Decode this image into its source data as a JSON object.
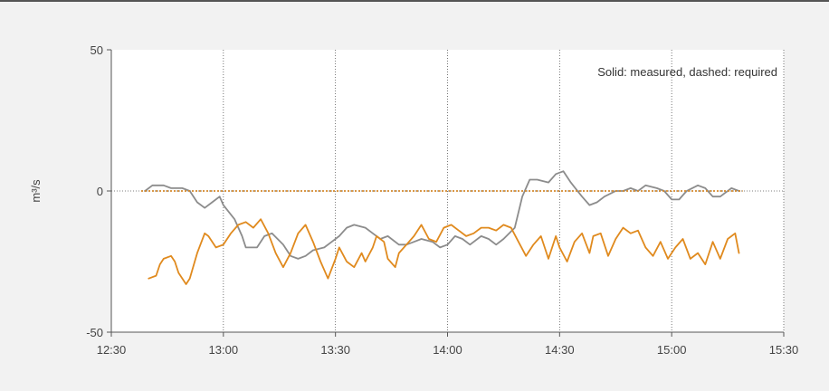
{
  "chart_data": {
    "type": "line",
    "ylabel": "m³/s",
    "annotation": "Solid: measured, dashed: required",
    "ylim": [
      -50,
      50
    ],
    "yticks": [
      {
        "value": 50,
        "label": "50"
      },
      {
        "value": 0,
        "label": "0"
      },
      {
        "value": -50,
        "label": "-50"
      }
    ],
    "xlim": [
      "12:30",
      "15:30"
    ],
    "xticks": [
      "12:30",
      "13:00",
      "13:30",
      "14:00",
      "14:30",
      "15:00",
      "15:30"
    ],
    "grid": "vertical dotted at ticks, horizontal dotted at 0",
    "series": [
      {
        "color": "#8c8c8c",
        "style": "solid",
        "points": [
          [
            "12:39",
            0
          ],
          [
            "12:41",
            2
          ],
          [
            "12:44",
            2
          ],
          [
            "12:46",
            1
          ],
          [
            "12:49",
            1
          ],
          [
            "12:51",
            0
          ],
          [
            "12:53",
            -4
          ],
          [
            "12:55",
            -6
          ],
          [
            "12:57",
            -4
          ],
          [
            "12:59",
            -2
          ],
          [
            "13:00",
            -5
          ],
          [
            "13:03",
            -10
          ],
          [
            "13:05",
            -16
          ],
          [
            "13:06",
            -20
          ],
          [
            "13:09",
            -20
          ],
          [
            "13:11",
            -16
          ],
          [
            "13:13",
            -15
          ],
          [
            "13:16",
            -19
          ],
          [
            "13:18",
            -23
          ],
          [
            "13:20",
            -24
          ],
          [
            "13:22",
            -23
          ],
          [
            "13:24",
            -21
          ],
          [
            "13:27",
            -20
          ],
          [
            "13:29",
            -18
          ],
          [
            "13:31",
            -16
          ],
          [
            "13:33",
            -13
          ],
          [
            "13:35",
            -12
          ],
          [
            "13:38",
            -13
          ],
          [
            "13:40",
            -15
          ],
          [
            "13:42",
            -17
          ],
          [
            "13:44",
            -16
          ],
          [
            "13:47",
            -19
          ],
          [
            "13:49",
            -19
          ],
          [
            "13:51",
            -18
          ],
          [
            "13:53",
            -17
          ],
          [
            "13:56",
            -18
          ],
          [
            "13:58",
            -20
          ],
          [
            "14:00",
            -19
          ],
          [
            "14:02",
            -16
          ],
          [
            "14:04",
            -17
          ],
          [
            "14:06",
            -19
          ],
          [
            "14:09",
            -16
          ],
          [
            "14:11",
            -17
          ],
          [
            "14:13",
            -19
          ],
          [
            "14:15",
            -17
          ],
          [
            "14:18",
            -13
          ],
          [
            "14:20",
            -2
          ],
          [
            "14:22",
            4
          ],
          [
            "14:24",
            4
          ],
          [
            "14:27",
            3
          ],
          [
            "14:29",
            6
          ],
          [
            "14:31",
            7
          ],
          [
            "14:33",
            3
          ],
          [
            "14:36",
            -2
          ],
          [
            "14:38",
            -5
          ],
          [
            "14:40",
            -4
          ],
          [
            "14:42",
            -2
          ],
          [
            "14:45",
            0
          ],
          [
            "14:47",
            0
          ],
          [
            "14:49",
            1
          ],
          [
            "14:51",
            0
          ],
          [
            "14:53",
            2
          ],
          [
            "14:56",
            1
          ],
          [
            "14:58",
            0
          ],
          [
            "15:00",
            -3
          ],
          [
            "15:02",
            -3
          ],
          [
            "15:04",
            0
          ],
          [
            "15:07",
            2
          ],
          [
            "15:09",
            1
          ],
          [
            "15:11",
            -2
          ],
          [
            "15:13",
            -2
          ],
          [
            "15:16",
            1
          ],
          [
            "15:18",
            0
          ]
        ]
      },
      {
        "color": "#e08a1e",
        "style": "solid",
        "points": [
          [
            "12:40",
            -31
          ],
          [
            "12:42",
            -30
          ],
          [
            "12:43",
            -26
          ],
          [
            "12:44",
            -24
          ],
          [
            "12:46",
            -23
          ],
          [
            "12:47",
            -25
          ],
          [
            "12:48",
            -29
          ],
          [
            "12:50",
            -33
          ],
          [
            "12:51",
            -31
          ],
          [
            "12:53",
            -22
          ],
          [
            "12:55",
            -15
          ],
          [
            "12:56",
            -16
          ],
          [
            "12:58",
            -20
          ],
          [
            "13:00",
            -19
          ],
          [
            "13:02",
            -15
          ],
          [
            "13:04",
            -12
          ],
          [
            "13:06",
            -11
          ],
          [
            "13:08",
            -13
          ],
          [
            "13:10",
            -10
          ],
          [
            "13:12",
            -15
          ],
          [
            "13:14",
            -22
          ],
          [
            "13:16",
            -27
          ],
          [
            "13:18",
            -22
          ],
          [
            "13:20",
            -15
          ],
          [
            "13:22",
            -12
          ],
          [
            "13:24",
            -18
          ],
          [
            "13:26",
            -25
          ],
          [
            "13:28",
            -31
          ],
          [
            "13:30",
            -24
          ],
          [
            "13:31",
            -20
          ],
          [
            "13:33",
            -25
          ],
          [
            "13:35",
            -27
          ],
          [
            "13:37",
            -22
          ],
          [
            "13:38",
            -25
          ],
          [
            "13:40",
            -20
          ],
          [
            "13:41",
            -16
          ],
          [
            "13:43",
            -18
          ],
          [
            "13:44",
            -24
          ],
          [
            "13:46",
            -27
          ],
          [
            "13:47",
            -22
          ],
          [
            "13:49",
            -19
          ],
          [
            "13:51",
            -16
          ],
          [
            "13:53",
            -12
          ],
          [
            "13:55",
            -17
          ],
          [
            "13:57",
            -18
          ],
          [
            "13:59",
            -13
          ],
          [
            "14:01",
            -12
          ],
          [
            "14:03",
            -14
          ],
          [
            "14:05",
            -16
          ],
          [
            "14:07",
            -15
          ],
          [
            "14:09",
            -13
          ],
          [
            "14:11",
            -13
          ],
          [
            "14:13",
            -14
          ],
          [
            "14:15",
            -12
          ],
          [
            "14:17",
            -13
          ],
          [
            "14:19",
            -18
          ],
          [
            "14:21",
            -23
          ],
          [
            "14:23",
            -19
          ],
          [
            "14:25",
            -16
          ],
          [
            "14:27",
            -24
          ],
          [
            "14:29",
            -16
          ],
          [
            "14:30",
            -20
          ],
          [
            "14:32",
            -25
          ],
          [
            "14:34",
            -18
          ],
          [
            "14:36",
            -15
          ],
          [
            "14:38",
            -22
          ],
          [
            "14:39",
            -16
          ],
          [
            "14:41",
            -15
          ],
          [
            "14:43",
            -23
          ],
          [
            "14:45",
            -17
          ],
          [
            "14:47",
            -13
          ],
          [
            "14:49",
            -15
          ],
          [
            "14:51",
            -14
          ],
          [
            "14:53",
            -20
          ],
          [
            "14:55",
            -23
          ],
          [
            "14:57",
            -18
          ],
          [
            "14:59",
            -24
          ],
          [
            "15:01",
            -20
          ],
          [
            "15:03",
            -17
          ],
          [
            "15:05",
            -24
          ],
          [
            "15:07",
            -22
          ],
          [
            "15:09",
            -26
          ],
          [
            "15:11",
            -18
          ],
          [
            "15:13",
            -24
          ],
          [
            "15:15",
            -17
          ],
          [
            "15:17",
            -15
          ],
          [
            "15:18",
            -22
          ]
        ]
      },
      {
        "color": "#8c8c8c",
        "style": "dashed",
        "points": [
          [
            "12:38",
            0
          ],
          [
            "15:19",
            0
          ]
        ]
      },
      {
        "color": "#e08a1e",
        "style": "dashed",
        "points": [
          [
            "12:38",
            0
          ],
          [
            "15:19",
            0
          ]
        ]
      }
    ]
  }
}
